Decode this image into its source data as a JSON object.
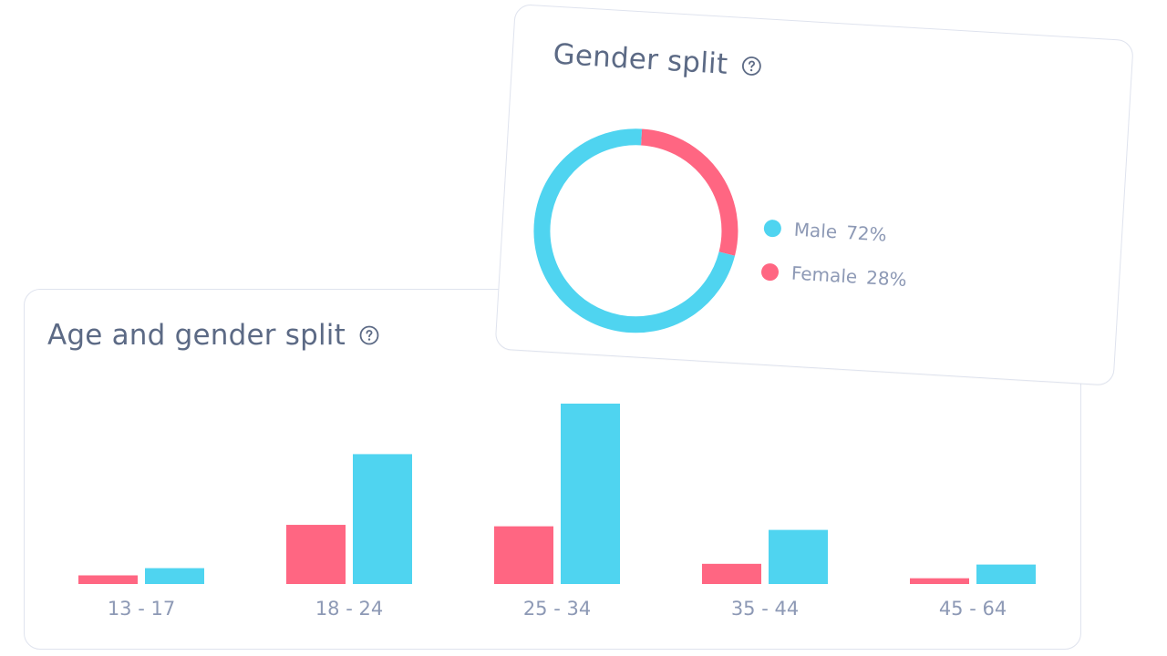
{
  "colors": {
    "male": "#4fd4f0",
    "female": "#ff6682",
    "title": "#5c6a85",
    "label": "#8d99b5",
    "border": "#dfe3ee"
  },
  "age_card": {
    "title": "Age and gender split",
    "help_icon": "question-circle-icon"
  },
  "gender_card": {
    "title": "Gender split",
    "help_icon": "question-circle-icon",
    "legend": [
      {
        "label": "Male",
        "pct": "72%"
      },
      {
        "label": "Female",
        "pct": "28%"
      }
    ]
  },
  "chart_data": [
    {
      "type": "bar",
      "title": "Age and gender split",
      "categories": [
        "13 - 17",
        "18 - 24",
        "25 - 34",
        "35 - 44",
        "45 - 64"
      ],
      "series": [
        {
          "name": "Female",
          "color": "#ff6682",
          "values": [
            1.2,
            8.2,
            8.0,
            2.8,
            0.8
          ]
        },
        {
          "name": "Male",
          "color": "#4fd4f0",
          "values": [
            2.2,
            18.0,
            25.0,
            7.5,
            2.7
          ]
        }
      ],
      "ylim": [
        0,
        25
      ],
      "grid": false
    },
    {
      "type": "pie",
      "title": "Gender split",
      "donut": true,
      "labels": [
        "Male",
        "Female"
      ],
      "values": [
        72,
        28
      ],
      "colors": [
        "#4fd4f0",
        "#ff6682"
      ]
    }
  ]
}
